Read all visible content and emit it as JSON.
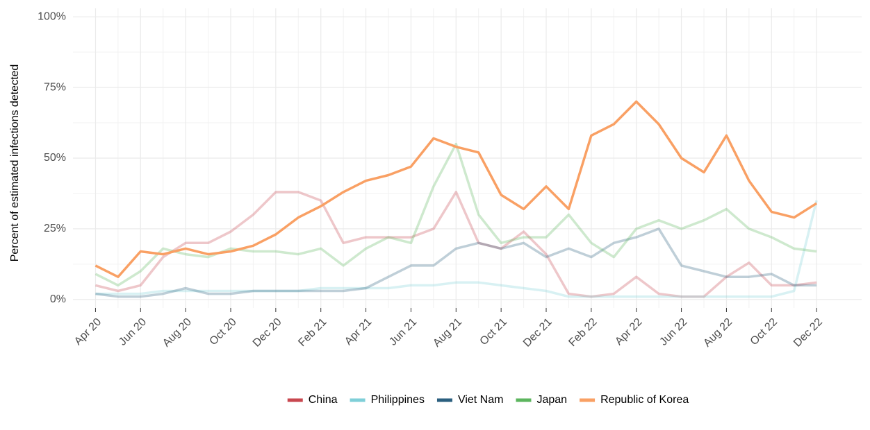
{
  "chart_data": {
    "type": "line",
    "y_label": "Percent of estimated infections detected",
    "x": [
      "2020-04",
      "2020-05",
      "2020-06",
      "2020-07",
      "2020-08",
      "2020-09",
      "2020-10",
      "2020-11",
      "2020-12",
      "2021-01",
      "2021-02",
      "2021-03",
      "2021-04",
      "2021-05",
      "2021-06",
      "2021-07",
      "2021-08",
      "2021-09",
      "2021-10",
      "2021-11",
      "2021-12",
      "2022-01",
      "2022-02",
      "2022-03",
      "2022-04",
      "2022-05",
      "2022-06",
      "2022-07",
      "2022-08",
      "2022-09",
      "2022-10",
      "2022-11",
      "2022-12"
    ],
    "series": [
      {
        "name": "China",
        "color": "#c8474f",
        "opacity": 0.3,
        "values": [
          5,
          3,
          5,
          15,
          20,
          20,
          24,
          30,
          38,
          38,
          35,
          20,
          22,
          22,
          22,
          25,
          38,
          20,
          18,
          24,
          16,
          2,
          1,
          2,
          8,
          2,
          1,
          1,
          8,
          13,
          5,
          5,
          6
        ]
      },
      {
        "name": "Philippines",
        "color": "#7fcfd8",
        "opacity": 0.3,
        "values": [
          2,
          2,
          2,
          3,
          3,
          3,
          3,
          3,
          3,
          3,
          4,
          4,
          4,
          4,
          5,
          5,
          6,
          6,
          5,
          4,
          3,
          1,
          1,
          1,
          1,
          1,
          1,
          1,
          1,
          1,
          1,
          3,
          35
        ]
      },
      {
        "name": "Viet Nam",
        "color": "#2b5f7f",
        "opacity": 0.3,
        "values": [
          2,
          1,
          1,
          2,
          4,
          2,
          2,
          3,
          3,
          3,
          3,
          3,
          4,
          8,
          12,
          12,
          18,
          20,
          18,
          20,
          15,
          18,
          15,
          20,
          22,
          25,
          12,
          10,
          8,
          8,
          9,
          5,
          5
        ]
      },
      {
        "name": "Japan",
        "color": "#5cb55e",
        "opacity": 0.3,
        "values": [
          9,
          5,
          10,
          18,
          16,
          15,
          18,
          17,
          17,
          16,
          18,
          12,
          18,
          22,
          20,
          40,
          55,
          30,
          20,
          22,
          22,
          30,
          20,
          15,
          25,
          28,
          25,
          28,
          32,
          25,
          22,
          18,
          17
        ]
      },
      {
        "name": "Republic of Korea",
        "color": "#f9a064",
        "opacity": 1,
        "values": [
          12,
          8,
          17,
          16,
          18,
          16,
          17,
          19,
          23,
          29,
          33,
          38,
          42,
          44,
          47,
          57,
          54,
          52,
          37,
          32,
          40,
          32,
          58,
          62,
          70,
          62,
          50,
          45,
          58,
          42,
          31,
          29,
          34
        ]
      }
    ],
    "xlim": [
      "2020-03",
      "2023-02"
    ],
    "xticks": [
      {
        "value": "2020-04",
        "label": "Apr 20"
      },
      {
        "value": "2020-06",
        "label": "Jun 20"
      },
      {
        "value": "2020-08",
        "label": "Aug 20"
      },
      {
        "value": "2020-10",
        "label": "Oct 20"
      },
      {
        "value": "2020-12",
        "label": "Dec 20"
      },
      {
        "value": "2021-02",
        "label": "Feb 21"
      },
      {
        "value": "2021-04",
        "label": "Apr 21"
      },
      {
        "value": "2021-06",
        "label": "Jun 21"
      },
      {
        "value": "2021-08",
        "label": "Aug 21"
      },
      {
        "value": "2021-10",
        "label": "Oct 21"
      },
      {
        "value": "2021-12",
        "label": "Dec 21"
      },
      {
        "value": "2022-02",
        "label": "Feb 22"
      },
      {
        "value": "2022-04",
        "label": "Apr 22"
      },
      {
        "value": "2022-06",
        "label": "Jun 22"
      },
      {
        "value": "2022-08",
        "label": "Aug 22"
      },
      {
        "value": "2022-10",
        "label": "Oct 22"
      },
      {
        "value": "2022-12",
        "label": "Dec 22"
      }
    ],
    "ylim": [
      -3,
      103
    ],
    "yticks": [
      {
        "value": 0,
        "label": "0%"
      },
      {
        "value": 25,
        "label": "25%"
      },
      {
        "value": 50,
        "label": "50%"
      },
      {
        "value": 75,
        "label": "75%"
      },
      {
        "value": 100,
        "label": "100%"
      }
    ],
    "grid": true,
    "legend": "bottom"
  }
}
